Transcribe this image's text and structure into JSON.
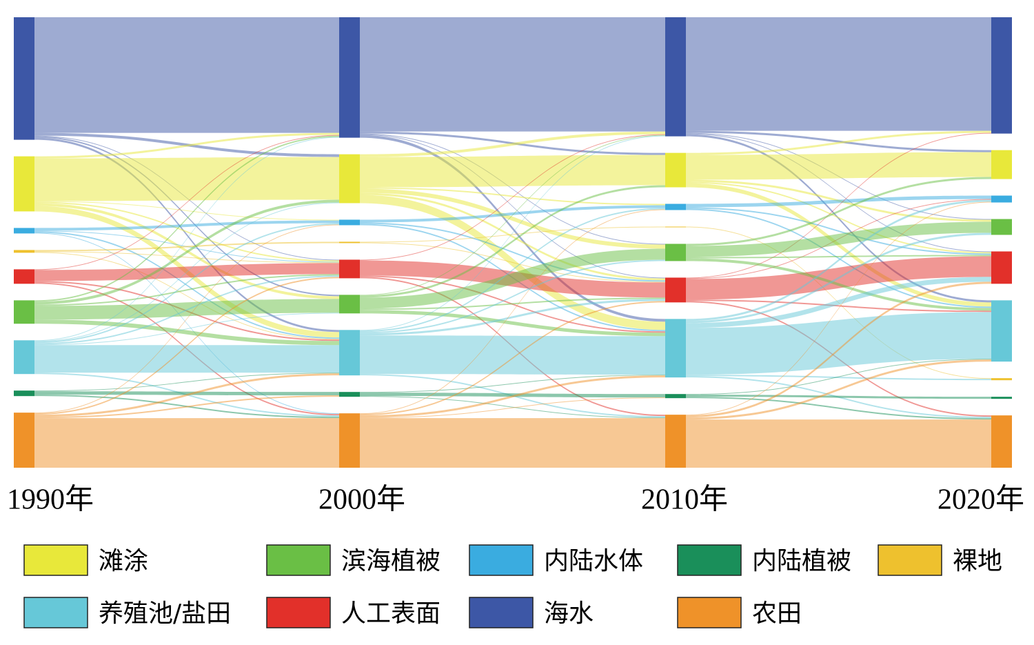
{
  "chart_data": {
    "type": "sankey",
    "stages": [
      "1990年",
      "2000年",
      "2010年",
      "2020年"
    ],
    "nodes": [
      "滩涂",
      "滨海植被",
      "内陆水体",
      "内陆植被",
      "裸地",
      "养殖池/盐田",
      "人工表面",
      "海水",
      "农田"
    ],
    "colors": [
      "#e8e83a",
      "#6abf45",
      "#3aace0",
      "#1a8f5a",
      "#eec12e",
      "#66c8d8",
      "#e2302a",
      "#3d57a6",
      "#ef9229"
    ],
    "columns": [
      [
        7,
        0,
        2,
        4,
        6,
        1,
        5,
        3,
        8
      ],
      [
        7,
        0,
        2,
        4,
        6,
        1,
        5,
        3,
        8
      ],
      [
        7,
        0,
        2,
        4,
        1,
        6,
        5,
        3,
        8
      ],
      [
        7,
        0,
        2,
        1,
        6,
        5,
        4,
        3,
        8
      ]
    ],
    "transitions": [
      [
        [
          7,
          7,
          168
        ],
        [
          7,
          0,
          4
        ],
        [
          7,
          5,
          3
        ],
        [
          7,
          6,
          1
        ],
        [
          7,
          1,
          2
        ],
        [
          0,
          0,
          62
        ],
        [
          0,
          7,
          3
        ],
        [
          0,
          5,
          8
        ],
        [
          0,
          1,
          4
        ],
        [
          0,
          6,
          2
        ],
        [
          0,
          2,
          1
        ],
        [
          2,
          2,
          4
        ],
        [
          2,
          5,
          2
        ],
        [
          2,
          6,
          1
        ],
        [
          2,
          8,
          1
        ],
        [
          4,
          4,
          2
        ],
        [
          4,
          6,
          1
        ],
        [
          4,
          5,
          1
        ],
        [
          6,
          6,
          16
        ],
        [
          6,
          8,
          2
        ],
        [
          6,
          5,
          2
        ],
        [
          6,
          7,
          1
        ],
        [
          1,
          1,
          20
        ],
        [
          1,
          5,
          6
        ],
        [
          1,
          0,
          4
        ],
        [
          1,
          6,
          2
        ],
        [
          1,
          7,
          2
        ],
        [
          5,
          5,
          40
        ],
        [
          5,
          6,
          2
        ],
        [
          5,
          8,
          2
        ],
        [
          5,
          1,
          1
        ],
        [
          5,
          7,
          1
        ],
        [
          5,
          2,
          2
        ],
        [
          5,
          0,
          1
        ],
        [
          3,
          3,
          5
        ],
        [
          3,
          8,
          2
        ],
        [
          3,
          5,
          1
        ],
        [
          8,
          8,
          72
        ],
        [
          8,
          5,
          3
        ],
        [
          8,
          6,
          2
        ],
        [
          8,
          2,
          1
        ],
        [
          8,
          3,
          2
        ]
      ],
      [
        [
          7,
          7,
          166
        ],
        [
          7,
          0,
          3
        ],
        [
          7,
          5,
          4
        ],
        [
          7,
          6,
          1
        ],
        [
          7,
          1,
          1
        ],
        [
          0,
          0,
          44
        ],
        [
          0,
          7,
          4
        ],
        [
          0,
          5,
          12
        ],
        [
          0,
          1,
          6
        ],
        [
          0,
          6,
          3
        ],
        [
          0,
          2,
          2
        ],
        [
          2,
          2,
          4
        ],
        [
          2,
          5,
          2
        ],
        [
          2,
          6,
          2
        ],
        [
          4,
          4,
          1
        ],
        [
          4,
          6,
          1
        ],
        [
          6,
          6,
          22
        ],
        [
          6,
          5,
          2
        ],
        [
          6,
          8,
          2
        ],
        [
          6,
          7,
          1
        ],
        [
          1,
          1,
          16
        ],
        [
          1,
          5,
          5
        ],
        [
          1,
          0,
          3
        ],
        [
          1,
          6,
          2
        ],
        [
          1,
          7,
          1
        ],
        [
          5,
          5,
          56
        ],
        [
          5,
          6,
          3
        ],
        [
          5,
          1,
          2
        ],
        [
          5,
          2,
          2
        ],
        [
          5,
          8,
          2
        ],
        [
          5,
          7,
          1
        ],
        [
          3,
          3,
          5
        ],
        [
          3,
          8,
          1
        ],
        [
          3,
          5,
          1
        ],
        [
          8,
          8,
          72
        ],
        [
          8,
          5,
          3
        ],
        [
          8,
          6,
          2
        ],
        [
          8,
          2,
          1
        ],
        [
          8,
          3,
          1
        ]
      ],
      [
        [
          7,
          7,
          165
        ],
        [
          7,
          0,
          3
        ],
        [
          7,
          5,
          3
        ],
        [
          7,
          6,
          1
        ],
        [
          7,
          1,
          1
        ],
        [
          0,
          0,
          36
        ],
        [
          0,
          7,
          3
        ],
        [
          0,
          5,
          6
        ],
        [
          0,
          1,
          3
        ],
        [
          0,
          6,
          2
        ],
        [
          2,
          2,
          5
        ],
        [
          2,
          5,
          2
        ],
        [
          2,
          6,
          2
        ],
        [
          4,
          4,
          1
        ],
        [
          6,
          6,
          30
        ],
        [
          6,
          5,
          2
        ],
        [
          6,
          8,
          2
        ],
        [
          6,
          2,
          1
        ],
        [
          6,
          7,
          1
        ],
        [
          1,
          1,
          16
        ],
        [
          1,
          5,
          4
        ],
        [
          1,
          0,
          3
        ],
        [
          1,
          6,
          2
        ],
        [
          5,
          5,
          68
        ],
        [
          5,
          6,
          7
        ],
        [
          5,
          1,
          3
        ],
        [
          5,
          2,
          3
        ],
        [
          5,
          8,
          2
        ],
        [
          5,
          4,
          2
        ],
        [
          3,
          3,
          3
        ],
        [
          3,
          8,
          2
        ],
        [
          3,
          5,
          1
        ],
        [
          8,
          8,
          70
        ],
        [
          8,
          5,
          3
        ],
        [
          8,
          6,
          3
        ],
        [
          8,
          2,
          1
        ]
      ]
    ]
  }
}
